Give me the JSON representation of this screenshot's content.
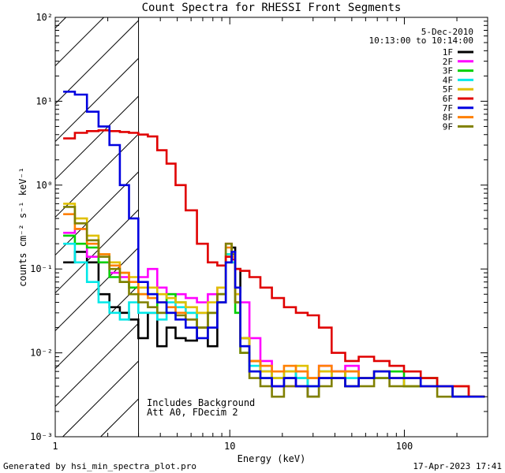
{
  "footer": {
    "generated": "Generated by hsi_min_spectra_plot.pro",
    "timestamp": "17-Apr-2023 17:41"
  },
  "chart_data": {
    "type": "line",
    "title": "Count Spectra for RHESSI Front Segments",
    "xlabel": "Energy (keV)",
    "ylabel": "counts cm⁻² s⁻¹ keV⁻¹",
    "xscale": "log",
    "yscale": "log",
    "xlim": [
      1,
      300
    ],
    "ylim": [
      0.001,
      100
    ],
    "x_ticks": [
      "1",
      "10",
      "100"
    ],
    "y_ticks": [
      "10⁻³",
      "10⁻²",
      "10⁻¹",
      "10⁰",
      "10¹",
      "10²"
    ],
    "legend_position": "top-right",
    "info_lines": [
      "5-Dec-2010",
      "10:13:00 to 10:14:00"
    ],
    "annotations": [
      "Includes Background",
      "Att A0, FDecim 2"
    ],
    "hatched_region": {
      "x_from": 1,
      "x_to": 3
    },
    "x": [
      1.2,
      1.4,
      1.65,
      1.9,
      2.2,
      2.5,
      2.8,
      3.2,
      3.6,
      4.1,
      4.6,
      5.2,
      6.0,
      7.0,
      8.0,
      9.0,
      10.0,
      10.5,
      11.0,
      12.0,
      14.0,
      16.0,
      19.0,
      22.0,
      26.0,
      30.0,
      35.0,
      42.0,
      50.0,
      60.0,
      75.0,
      90.0,
      110.0,
      140.0,
      170.0,
      210.0,
      260.0
    ],
    "series": [
      {
        "name": "1F",
        "color": "#000000",
        "values": [
          0.12,
          0.16,
          0.12,
          0.05,
          0.035,
          0.03,
          0.025,
          0.015,
          0.03,
          0.012,
          0.02,
          0.015,
          0.014,
          0.03,
          0.012,
          0.04,
          0.12,
          0.18,
          0.1,
          0.015,
          0.008,
          0.006,
          0.004,
          0.005,
          0.004,
          0.003,
          0.005,
          0.006,
          0.004,
          0.005,
          0.006,
          0.005,
          0.004,
          0.005,
          0.004,
          0.003,
          0.003
        ]
      },
      {
        "name": "2F",
        "color": "#ff00ff",
        "values": [
          0.27,
          0.3,
          0.14,
          0.12,
          0.09,
          0.08,
          0.07,
          0.08,
          0.1,
          0.06,
          0.05,
          0.05,
          0.045,
          0.04,
          0.05,
          0.06,
          0.2,
          0.15,
          0.05,
          0.04,
          0.015,
          0.008,
          0.004,
          0.004,
          0.006,
          0.005,
          0.007,
          0.006,
          0.007,
          0.005,
          0.006,
          0.005,
          0.005,
          0.004,
          0.004,
          0.004,
          0.003
        ]
      },
      {
        "name": "3F",
        "color": "#00d000",
        "values": [
          0.25,
          0.2,
          0.18,
          0.12,
          0.08,
          0.07,
          0.06,
          0.05,
          0.05,
          0.03,
          0.05,
          0.04,
          0.03,
          0.02,
          0.03,
          0.05,
          0.15,
          0.12,
          0.03,
          0.01,
          0.006,
          0.005,
          0.005,
          0.006,
          0.005,
          0.004,
          0.006,
          0.005,
          0.006,
          0.005,
          0.005,
          0.006,
          0.004,
          0.005,
          0.004,
          0.003,
          0.003
        ]
      },
      {
        "name": "4F",
        "color": "#00e8e8",
        "values": [
          0.2,
          0.12,
          0.07,
          0.04,
          0.03,
          0.025,
          0.04,
          0.03,
          0.03,
          0.025,
          0.04,
          0.035,
          0.03,
          0.02,
          0.03,
          0.05,
          0.15,
          0.12,
          0.04,
          0.012,
          0.007,
          0.006,
          0.005,
          0.006,
          0.005,
          0.004,
          0.006,
          0.005,
          0.005,
          0.005,
          0.006,
          0.005,
          0.004,
          0.005,
          0.004,
          0.003,
          0.003
        ]
      },
      {
        "name": "5F",
        "color": "#e0c000",
        "values": [
          0.6,
          0.4,
          0.25,
          0.15,
          0.12,
          0.09,
          0.08,
          0.06,
          0.06,
          0.05,
          0.045,
          0.04,
          0.035,
          0.03,
          0.04,
          0.06,
          0.2,
          0.15,
          0.05,
          0.015,
          0.008,
          0.006,
          0.005,
          0.006,
          0.007,
          0.005,
          0.006,
          0.005,
          0.006,
          0.005,
          0.006,
          0.005,
          0.004,
          0.005,
          0.004,
          0.004,
          0.003
        ]
      },
      {
        "name": "6F",
        "color": "#e00000",
        "values": [
          3.6,
          4.2,
          4.4,
          4.5,
          4.4,
          4.3,
          4.2,
          4.0,
          3.8,
          2.6,
          1.8,
          1.0,
          0.5,
          0.2,
          0.12,
          0.11,
          0.14,
          0.13,
          0.1,
          0.095,
          0.08,
          0.06,
          0.045,
          0.035,
          0.03,
          0.028,
          0.02,
          0.01,
          0.008,
          0.009,
          0.008,
          0.007,
          0.006,
          0.005,
          0.004,
          0.004,
          0.003
        ]
      },
      {
        "name": "7F",
        "color": "#0000e0",
        "values": [
          13.0,
          12.0,
          7.5,
          5.0,
          3.0,
          1.0,
          0.4,
          0.07,
          0.05,
          0.04,
          0.03,
          0.025,
          0.02,
          0.015,
          0.02,
          0.04,
          0.12,
          0.16,
          0.06,
          0.012,
          0.006,
          0.005,
          0.004,
          0.005,
          0.004,
          0.004,
          0.005,
          0.005,
          0.004,
          0.005,
          0.006,
          0.005,
          0.005,
          0.004,
          0.004,
          0.003,
          0.003
        ]
      },
      {
        "name": "8F",
        "color": "#ff8000",
        "values": [
          0.45,
          0.3,
          0.2,
          0.15,
          0.11,
          0.09,
          0.07,
          0.05,
          0.045,
          0.04,
          0.035,
          0.03,
          0.025,
          0.02,
          0.03,
          0.05,
          0.18,
          0.14,
          0.04,
          0.012,
          0.008,
          0.007,
          0.006,
          0.007,
          0.006,
          0.005,
          0.007,
          0.006,
          0.006,
          0.005,
          0.006,
          0.005,
          0.005,
          0.004,
          0.004,
          0.003,
          0.003
        ]
      },
      {
        "name": "9F",
        "color": "#808000",
        "values": [
          0.55,
          0.35,
          0.22,
          0.14,
          0.1,
          0.07,
          0.05,
          0.04,
          0.035,
          0.03,
          0.03,
          0.028,
          0.025,
          0.02,
          0.03,
          0.05,
          0.2,
          0.15,
          0.04,
          0.01,
          0.005,
          0.004,
          0.003,
          0.004,
          0.004,
          0.003,
          0.004,
          0.005,
          0.004,
          0.004,
          0.005,
          0.004,
          0.004,
          0.004,
          0.003,
          0.003,
          0.003
        ]
      }
    ]
  }
}
